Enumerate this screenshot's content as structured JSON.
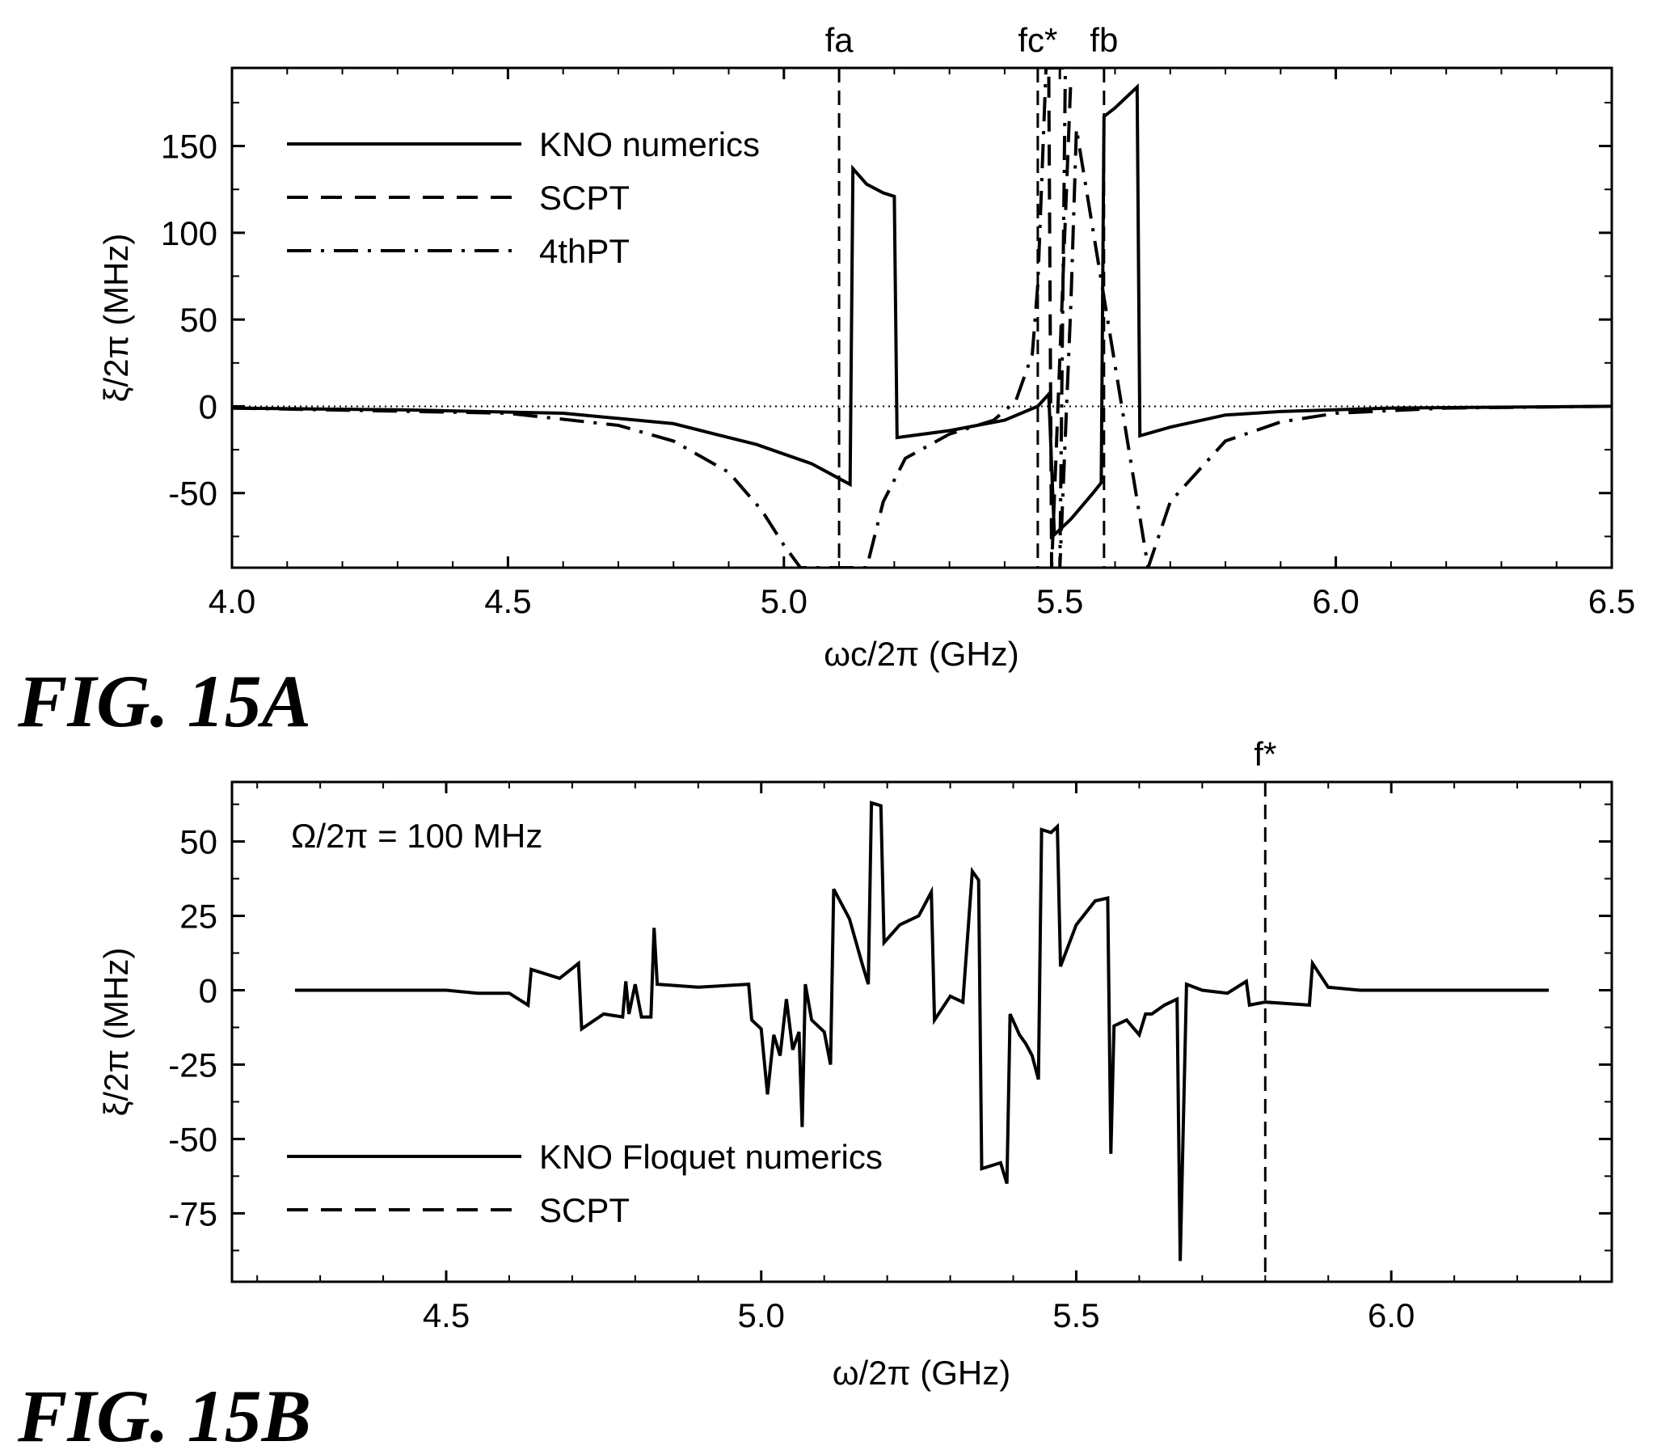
{
  "chart_data": [
    {
      "type": "line",
      "figure_label": "FIG. 15A",
      "xlabel": "ωc/2π (GHz)",
      "ylabel": "ξ/2π (MHz)",
      "xlim": [
        4.0,
        6.5
      ],
      "ylim": [
        -93,
        195
      ],
      "x_ticks": [
        "4.0",
        "4.5",
        "5.0",
        "5.5",
        "6.0",
        "6.5"
      ],
      "y_ticks": [
        "150",
        "100",
        "50",
        "0",
        "-50"
      ],
      "legend_position": "top-left",
      "vlines": [
        {
          "label": "fa",
          "x": 5.1
        },
        {
          "label": "fc*",
          "x": 5.46
        },
        {
          "label": "fb",
          "x": 5.58
        }
      ],
      "series": [
        {
          "name": "KNO numerics",
          "style": "solid",
          "points": [
            [
              4.0,
              -1
            ],
            [
              4.3,
              -2
            ],
            [
              4.6,
              -4
            ],
            [
              4.8,
              -10
            ],
            [
              4.95,
              -22
            ],
            [
              5.05,
              -33
            ],
            [
              5.12,
              -45
            ],
            [
              5.125,
              137
            ],
            [
              5.15,
              128
            ],
            [
              5.18,
              123
            ],
            [
              5.2,
              121
            ],
            [
              5.205,
              -18
            ],
            [
              5.3,
              -14
            ],
            [
              5.4,
              -8
            ],
            [
              5.46,
              0
            ],
            [
              5.48,
              7
            ],
            [
              5.49,
              -74
            ],
            [
              5.52,
              -65
            ],
            [
              5.56,
              -50
            ],
            [
              5.575,
              -44
            ],
            [
              5.58,
              167
            ],
            [
              5.6,
              172
            ],
            [
              5.64,
              184
            ],
            [
              5.645,
              -17
            ],
            [
              5.7,
              -12
            ],
            [
              5.8,
              -5
            ],
            [
              5.9,
              -3
            ],
            [
              6.1,
              -1
            ],
            [
              6.5,
              0
            ]
          ]
        },
        {
          "name": "SCPT",
          "style": "dashed",
          "points": [
            [
              5.48,
              190
            ],
            [
              5.485,
              -93
            ],
            [
              5.52,
              190
            ]
          ]
        },
        {
          "name": "4thPT",
          "style": "dashdot",
          "points": [
            [
              4.0,
              -1
            ],
            [
              4.5,
              -4
            ],
            [
              4.7,
              -11
            ],
            [
              4.8,
              -20
            ],
            [
              4.9,
              -38
            ],
            [
              4.96,
              -60
            ],
            [
              5.0,
              -80
            ],
            [
              5.03,
              -93
            ],
            [
              5.15,
              -93
            ],
            [
              5.18,
              -55
            ],
            [
              5.22,
              -30
            ],
            [
              5.3,
              -16
            ],
            [
              5.38,
              -8
            ],
            [
              5.42,
              3
            ],
            [
              5.45,
              30
            ],
            [
              5.46,
              70
            ],
            [
              5.475,
              195
            ],
            [
              5.51,
              195
            ],
            [
              5.5,
              -93
            ],
            [
              5.52,
              60
            ],
            [
              5.53,
              160
            ],
            [
              5.66,
              -93
            ],
            [
              5.7,
              -55
            ],
            [
              5.8,
              -20
            ],
            [
              5.9,
              -9
            ],
            [
              6.0,
              -4
            ],
            [
              6.2,
              -1
            ],
            [
              6.5,
              0
            ]
          ]
        }
      ]
    },
    {
      "type": "line",
      "figure_label": "FIG. 15B",
      "xlabel": "ω/2π (GHz)",
      "ylabel": "ξ/2π (MHz)",
      "xlim": [
        4.16,
        6.35
      ],
      "ylim": [
        -98,
        70
      ],
      "x_ticks": [
        "4.5",
        "5.0",
        "5.5",
        "6.0"
      ],
      "y_ticks": [
        "50",
        "25",
        "0",
        "-25",
        "-50",
        "-75"
      ],
      "annotation": "Ω/2π = 100 MHz",
      "legend_position": "bottom-left",
      "vlines": [
        {
          "label": "f*",
          "x": 5.8
        }
      ],
      "series": [
        {
          "name": "KNO Floquet numerics",
          "style": "solid",
          "points": [
            [
              4.26,
              0
            ],
            [
              4.45,
              0
            ],
            [
              4.5,
              0
            ],
            [
              4.55,
              -1
            ],
            [
              4.6,
              -1
            ],
            [
              4.63,
              -5
            ],
            [
              4.635,
              7
            ],
            [
              4.68,
              4
            ],
            [
              4.71,
              9
            ],
            [
              4.715,
              -13
            ],
            [
              4.75,
              -8
            ],
            [
              4.78,
              -9
            ],
            [
              4.785,
              3
            ],
            [
              4.79,
              -8
            ],
            [
              4.8,
              2
            ],
            [
              4.81,
              -9
            ],
            [
              4.825,
              -9
            ],
            [
              4.83,
              21
            ],
            [
              4.835,
              2
            ],
            [
              4.9,
              1
            ],
            [
              4.98,
              2
            ],
            [
              4.985,
              -10
            ],
            [
              5.0,
              -13
            ],
            [
              5.01,
              -35
            ],
            [
              5.02,
              -15
            ],
            [
              5.03,
              -22
            ],
            [
              5.04,
              -3
            ],
            [
              5.05,
              -20
            ],
            [
              5.06,
              -14
            ],
            [
              5.065,
              -46
            ],
            [
              5.07,
              2
            ],
            [
              5.08,
              -10
            ],
            [
              5.1,
              -14
            ],
            [
              5.11,
              -25
            ],
            [
              5.115,
              34
            ],
            [
              5.14,
              24
            ],
            [
              5.16,
              9
            ],
            [
              5.17,
              2
            ],
            [
              5.175,
              63
            ],
            [
              5.19,
              62
            ],
            [
              5.195,
              16
            ],
            [
              5.22,
              22
            ],
            [
              5.25,
              25
            ],
            [
              5.27,
              33
            ],
            [
              5.275,
              -10
            ],
            [
              5.3,
              -2
            ],
            [
              5.32,
              -4
            ],
            [
              5.335,
              40
            ],
            [
              5.345,
              37
            ],
            [
              5.35,
              -60
            ],
            [
              5.38,
              -58
            ],
            [
              5.39,
              -65
            ],
            [
              5.395,
              -8
            ],
            [
              5.41,
              -15
            ],
            [
              5.42,
              -18
            ],
            [
              5.43,
              -22
            ],
            [
              5.44,
              -30
            ],
            [
              5.445,
              54
            ],
            [
              5.46,
              53
            ],
            [
              5.47,
              55
            ],
            [
              5.475,
              8
            ],
            [
              5.5,
              22
            ],
            [
              5.53,
              30
            ],
            [
              5.55,
              31
            ],
            [
              5.555,
              -55
            ],
            [
              5.56,
              -12
            ],
            [
              5.58,
              -10
            ],
            [
              5.6,
              -15
            ],
            [
              5.61,
              -8
            ],
            [
              5.62,
              -8
            ],
            [
              5.64,
              -5
            ],
            [
              5.66,
              -3
            ],
            [
              5.665,
              -91
            ],
            [
              5.675,
              2
            ],
            [
              5.7,
              0
            ],
            [
              5.74,
              -1
            ],
            [
              5.77,
              3
            ],
            [
              5.775,
              -5
            ],
            [
              5.8,
              -4
            ],
            [
              5.87,
              -5
            ],
            [
              5.875,
              9
            ],
            [
              5.9,
              1
            ],
            [
              5.95,
              0
            ],
            [
              6.1,
              0
            ],
            [
              6.25,
              0
            ]
          ]
        },
        {
          "name": "SCPT",
          "style": "dashed",
          "points": []
        }
      ]
    }
  ]
}
